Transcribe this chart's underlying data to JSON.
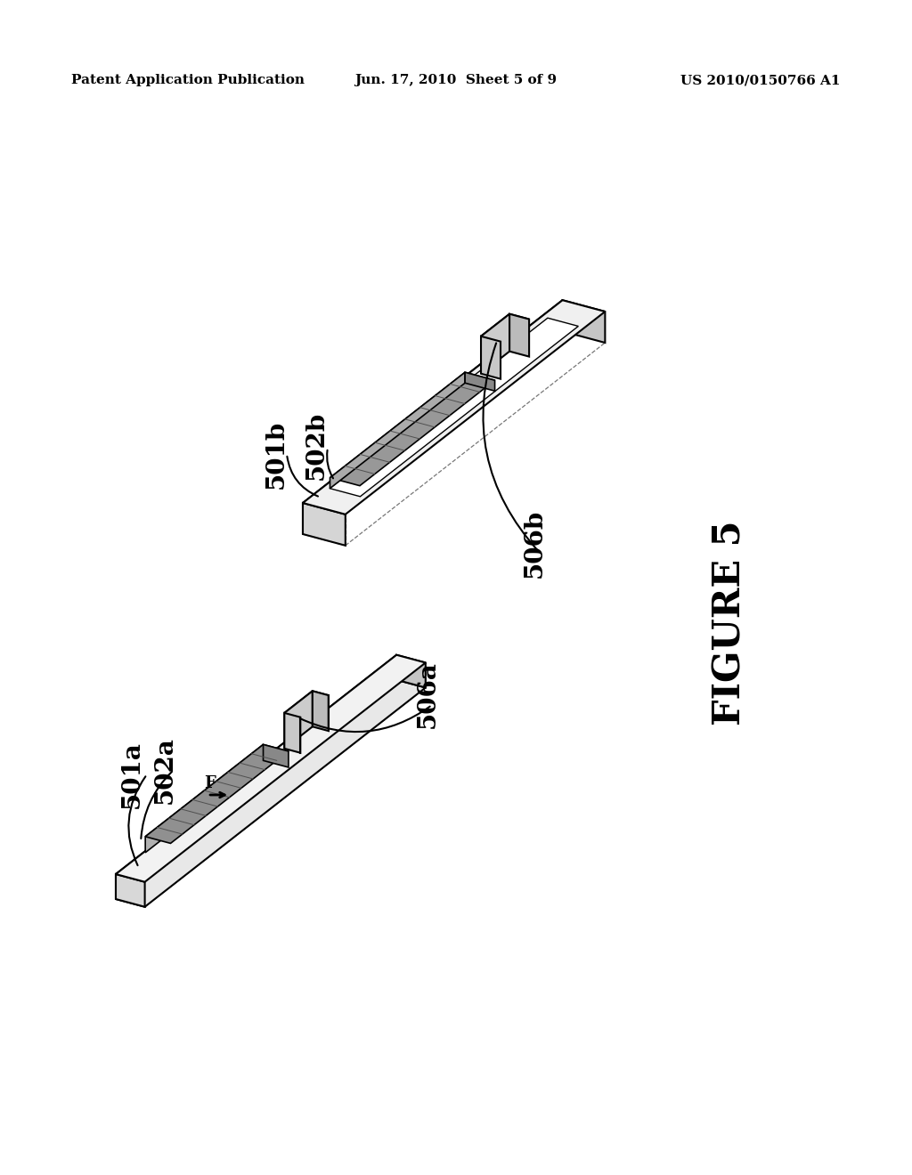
{
  "background_color": "#ffffff",
  "header_left": "Patent Application Publication",
  "header_center": "Jun. 17, 2010  Sheet 5 of 9",
  "header_right": "US 2010/0150766 A1",
  "figure_label": "FIGURE 5",
  "header_fontsize": 11,
  "figure_label_fontsize": 30,
  "label_fontsize": 20,
  "line_color": "#000000",
  "top_blade": {
    "label_501b": "501b",
    "label_502b": "502b",
    "label_506b": "506b"
  },
  "bottom_blade": {
    "label_501a": "501a",
    "label_502a": "502a",
    "label_506a": "506a",
    "label_F": "F"
  }
}
